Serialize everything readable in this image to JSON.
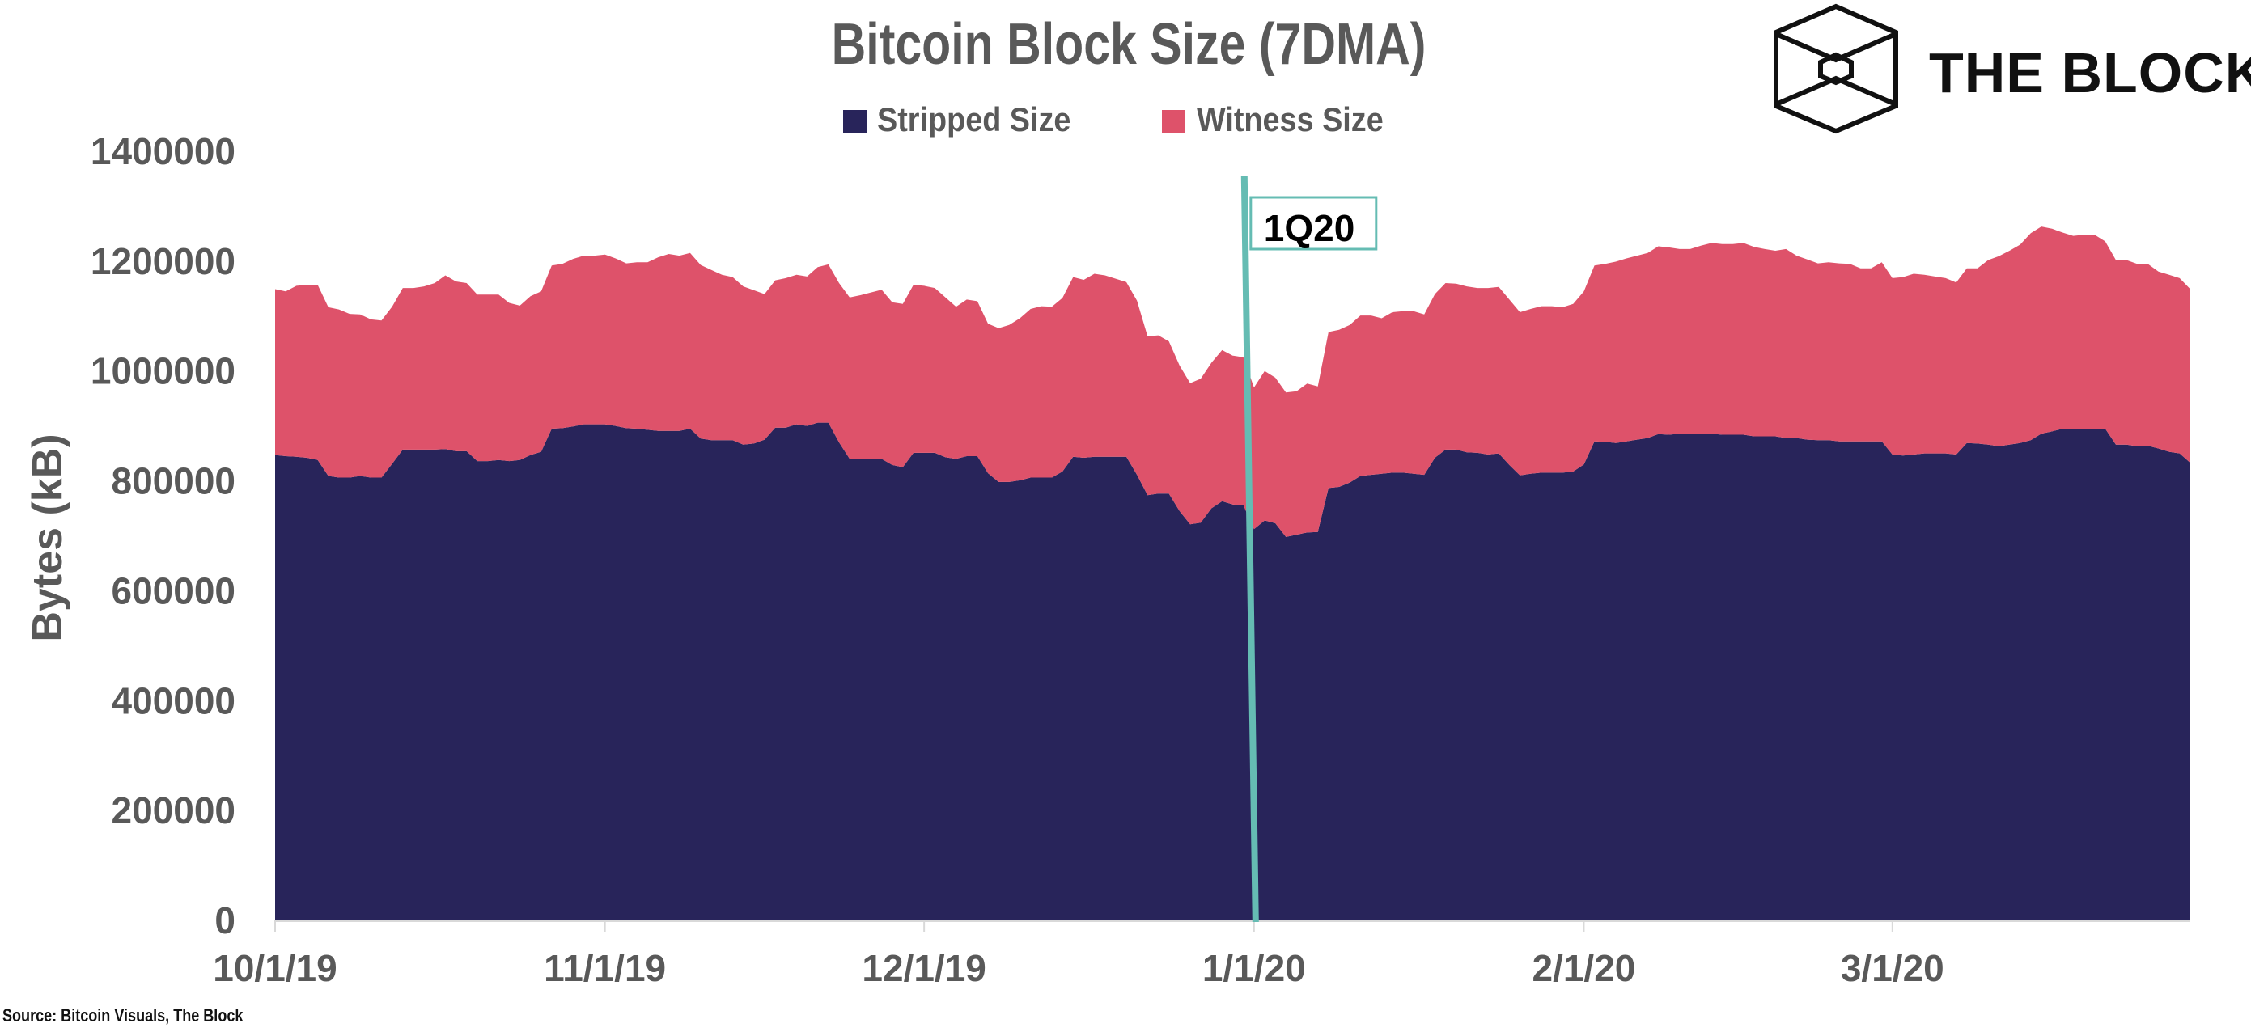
{
  "chart_data": {
    "type": "area",
    "stacked": true,
    "title": "Bitcoin Block Size (7DMA)",
    "ylabel": "Bytes (kB)",
    "xlabel": "",
    "ylim": [
      0,
      1400000
    ],
    "yticks": [
      "0",
      "200000",
      "400000",
      "600000",
      "800000",
      "1000000",
      "1200000",
      "1400000"
    ],
    "xticks": [
      "10/1/19",
      "11/1/19",
      "12/1/19",
      "1/1/20",
      "2/1/20",
      "3/1/20"
    ],
    "grid": false,
    "legend_position": "top",
    "x": [
      "10/1/19",
      "10/2/19",
      "10/3/19",
      "10/4/19",
      "10/5/19",
      "10/6/19",
      "10/7/19",
      "10/8/19",
      "10/9/19",
      "10/10/19",
      "10/11/19",
      "10/12/19",
      "10/13/19",
      "10/14/19",
      "10/15/19",
      "10/16/19",
      "10/17/19",
      "10/18/19",
      "10/19/19",
      "10/20/19",
      "10/21/19",
      "10/22/19",
      "10/23/19",
      "10/24/19",
      "10/25/19",
      "10/26/19",
      "10/27/19",
      "10/28/19",
      "10/29/19",
      "10/30/19",
      "10/31/19",
      "11/1/19",
      "11/2/19",
      "11/3/19",
      "11/4/19",
      "11/5/19",
      "11/6/19",
      "11/7/19",
      "11/8/19",
      "11/9/19",
      "11/10/19",
      "11/11/19",
      "11/12/19",
      "11/13/19",
      "11/14/19",
      "11/15/19",
      "11/16/19",
      "11/17/19",
      "11/18/19",
      "11/19/19",
      "11/20/19",
      "11/21/19",
      "11/22/19",
      "11/23/19",
      "11/24/19",
      "11/25/19",
      "11/26/19",
      "11/27/19",
      "11/28/19",
      "11/29/19",
      "11/30/19",
      "12/1/19",
      "12/2/19",
      "12/3/19",
      "12/4/19",
      "12/5/19",
      "12/6/19",
      "12/7/19",
      "12/8/19",
      "12/9/19",
      "12/10/19",
      "12/11/19",
      "12/12/19",
      "12/13/19",
      "12/14/19",
      "12/15/19",
      "12/16/19",
      "12/17/19",
      "12/18/19",
      "12/19/19",
      "12/20/19",
      "12/21/19",
      "12/22/19",
      "12/23/19",
      "12/24/19",
      "12/25/19",
      "12/26/19",
      "12/27/19",
      "12/28/19",
      "12/29/19",
      "12/30/19",
      "12/31/19",
      "1/1/20",
      "1/2/20",
      "1/3/20",
      "1/4/20",
      "1/5/20",
      "1/6/20",
      "1/7/20",
      "1/8/20",
      "1/9/20",
      "1/10/20",
      "1/11/20",
      "1/12/20",
      "1/13/20",
      "1/14/20",
      "1/15/20",
      "1/16/20",
      "1/17/20",
      "1/18/20",
      "1/19/20",
      "1/20/20",
      "1/21/20",
      "1/22/20",
      "1/23/20",
      "1/24/20",
      "1/25/20",
      "1/26/20",
      "1/27/20",
      "1/28/20",
      "1/29/20",
      "1/30/20",
      "1/31/20",
      "2/1/20",
      "2/2/20",
      "2/3/20",
      "2/4/20",
      "2/5/20",
      "2/6/20",
      "2/7/20",
      "2/8/20",
      "2/9/20",
      "2/10/20",
      "2/11/20",
      "2/12/20",
      "2/13/20",
      "2/14/20",
      "2/15/20",
      "2/16/20",
      "2/17/20",
      "2/18/20",
      "2/19/20",
      "2/20/20",
      "2/21/20",
      "2/22/20",
      "2/23/20",
      "2/24/20",
      "2/25/20",
      "2/26/20",
      "2/27/20",
      "2/28/20",
      "2/29/20",
      "3/1/20",
      "3/2/20",
      "3/3/20",
      "3/4/20",
      "3/5/20",
      "3/6/20",
      "3/7/20",
      "3/8/20",
      "3/9/20",
      "3/10/20",
      "3/11/20",
      "3/12/20",
      "3/13/20",
      "3/14/20",
      "3/15/20",
      "3/16/20",
      "3/17/20",
      "3/18/20",
      "3/19/20",
      "3/20/20",
      "3/21/20",
      "3/22/20",
      "3/23/20",
      "3/24/20",
      "3/25/20",
      "3/26/20",
      "3/27/20",
      "3/28/20",
      "3/29/20"
    ],
    "series": [
      {
        "name": "Stripped Size",
        "color": "#28245a",
        "values": [
          847000,
          845000,
          844000,
          842000,
          838000,
          809000,
          806000,
          806000,
          809000,
          806000,
          806000,
          831000,
          857000,
          857000,
          857000,
          857000,
          858000,
          854000,
          854000,
          836000,
          836000,
          838000,
          836000,
          838000,
          847000,
          853000,
          895000,
          896000,
          899000,
          903000,
          903000,
          903000,
          900000,
          896000,
          895000,
          893000,
          891000,
          891000,
          891000,
          895000,
          877000,
          874000,
          874000,
          874000,
          866000,
          868000,
          875000,
          897000,
          897000,
          903000,
          900000,
          906000,
          906000,
          870000,
          840000,
          840000,
          840000,
          840000,
          829000,
          825000,
          851000,
          851000,
          851000,
          843000,
          840000,
          845000,
          845000,
          814000,
          798000,
          798000,
          801000,
          806000,
          806000,
          806000,
          817000,
          844000,
          842000,
          844000,
          844000,
          844000,
          844000,
          811000,
          774000,
          777000,
          777000,
          745000,
          721000,
          724000,
          750000,
          763000,
          757000,
          756000,
          712000,
          728000,
          723000,
          698000,
          702000,
          706000,
          707000,
          787000,
          789000,
          797000,
          809000,
          811000,
          813000,
          815000,
          815000,
          813000,
          811000,
          842000,
          857000,
          857000,
          852000,
          851000,
          848000,
          850000,
          829000,
          810000,
          813000,
          815000,
          815000,
          815000,
          817000,
          830000,
          872000,
          871000,
          869000,
          872000,
          875000,
          878000,
          885000,
          884000,
          886000,
          886000,
          886000,
          886000,
          884000,
          884000,
          884000,
          881000,
          881000,
          881000,
          878000,
          878000,
          875000,
          874000,
          874000,
          872000,
          872000,
          872000,
          872000,
          872000,
          848000,
          846000,
          848000,
          850000,
          850000,
          850000,
          848000,
          869000,
          868000,
          866000,
          863000,
          866000,
          869000,
          874000,
          886000,
          890000,
          895000,
          895000,
          895000,
          895000,
          895000,
          866000,
          866000,
          863000,
          864000,
          859000,
          853000,
          850000,
          833000
        ]
      },
      {
        "name": "Witness Size",
        "color": "#de526a",
        "values": [
          302000,
          300000,
          311000,
          315000,
          319000,
          307000,
          306000,
          298000,
          294000,
          288000,
          286000,
          286000,
          294000,
          294000,
          297000,
          303000,
          316000,
          309000,
          306000,
          303000,
          303000,
          301000,
          288000,
          281000,
          289000,
          292000,
          297000,
          299000,
          305000,
          307000,
          307000,
          309000,
          305000,
          300000,
          303000,
          305000,
          316000,
          322000,
          319000,
          320000,
          316000,
          310000,
          301000,
          297000,
          288000,
          279000,
          265000,
          268000,
          272000,
          272000,
          272000,
          283000,
          288000,
          290000,
          294000,
          298000,
          303000,
          308000,
          296000,
          297000,
          306000,
          304000,
          300000,
          291000,
          277000,
          285000,
          282000,
          272000,
          280000,
          286000,
          295000,
          307000,
          312000,
          311000,
          316000,
          327000,
          324000,
          333000,
          330000,
          324000,
          318000,
          317000,
          289000,
          288000,
          277000,
          265000,
          257000,
          262000,
          265000,
          275000,
          271000,
          269000,
          258000,
          272000,
          265000,
          263000,
          261000,
          271000,
          265000,
          284000,
          286000,
          287000,
          292000,
          290000,
          283000,
          292000,
          294000,
          296000,
          292000,
          298000,
          303000,
          302000,
          302000,
          300000,
          303000,
          303000,
          301000,
          297000,
          300000,
          303000,
          303000,
          301000,
          305000,
          315000,
          320000,
          324000,
          330000,
          333000,
          335000,
          337000,
          342000,
          341000,
          336000,
          336000,
          342000,
          347000,
          347000,
          347000,
          349000,
          345000,
          341000,
          338000,
          344000,
          332000,
          328000,
          322000,
          324000,
          324000,
          323000,
          315000,
          315000,
          326000,
          321000,
          325000,
          329000,
          325000,
          322000,
          319000,
          313000,
          318000,
          319000,
          336000,
          346000,
          353000,
          361000,
          377000,
          377000,
          369000,
          357000,
          351000,
          353000,
          353000,
          341000,
          336000,
          336000,
          332000,
          331000,
          322000,
          322000,
          319000,
          316000
        ]
      }
    ],
    "annotations": [
      {
        "type": "vertical-line",
        "x": "1/1/20",
        "label": "1Q20",
        "color": "#65bcb3"
      }
    ]
  },
  "logo": {
    "text": "THE BLOCK",
    "icon": "cube-hexagon-icon"
  },
  "source": "Source: Bitcoin Visuals, The Block"
}
